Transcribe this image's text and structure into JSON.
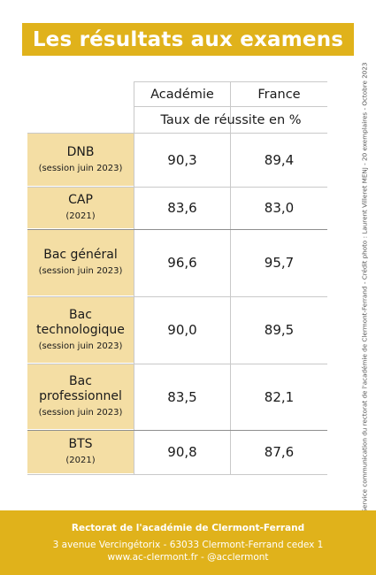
{
  "title": "Les résultats aux examens",
  "columns": [
    "Académie",
    "France"
  ],
  "subheader": "Taux de réussite en %",
  "rows": [
    {
      "label": [
        "DNB"
      ],
      "sub": "(session juin 2023)",
      "academie": "90,3",
      "france": "89,4"
    },
    {
      "label": [
        "CAP"
      ],
      "sub": "(2021)",
      "academie": "83,6",
      "france": "83,0"
    },
    {
      "label": [
        "Bac général"
      ],
      "sub": "(session juin 2023)",
      "academie": "96,6",
      "france": "95,7"
    },
    {
      "label": [
        "Bac",
        "technologique"
      ],
      "sub": "(session juin 2023)",
      "academie": "90,0",
      "france": "89,5"
    },
    {
      "label": [
        "Bac",
        "professionnel"
      ],
      "sub": "(session juin 2023)",
      "academie": "83,5",
      "france": "82,1"
    },
    {
      "label": [
        "BTS"
      ],
      "sub": "(2021)",
      "academie": "90,8",
      "france": "87,6"
    }
  ],
  "side_text": "Service communication du rectorat de l'académie de Clermont-Ferrand - Crédit photo : Laurent Villeret MENJ - 20 exemplaires - Octobre 2023",
  "footer": {
    "name": "Rectorat de l'académie de Clermont-Ferrand",
    "address": "3 avenue Vercingétorix - 63033 Clermont-Ferrand cedex 1",
    "web": "www.ac-clermont.fr - @acclermont"
  },
  "colors": {
    "accent": "#e0b21b",
    "label_bg": "#f4dea4"
  }
}
